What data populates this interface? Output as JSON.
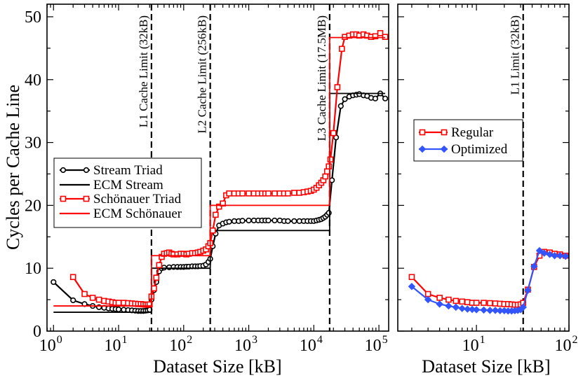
{
  "chart_data": [
    {
      "type": "line",
      "panel": "left",
      "xscale": "log",
      "xlim_exp": [
        -0.1,
        5.15
      ],
      "ylim": [
        0,
        52
      ],
      "xlabel": "Dataset Size [kB]",
      "ylabel": "Cycles per Cache Line",
      "xticks_exp": [
        0,
        1,
        2,
        3,
        4,
        5
      ],
      "yticks": [
        0,
        10,
        20,
        30,
        40,
        50
      ],
      "series": [
        {
          "name": "Stream Triad",
          "kind": "measured",
          "color": "#000000",
          "marker": "circle",
          "points": [
            [
              1,
              7.8
            ],
            [
              2,
              4.9
            ],
            [
              3,
              4.3
            ],
            [
              4,
              4.0
            ],
            [
              5,
              3.8
            ],
            [
              6,
              3.7
            ],
            [
              7,
              3.6
            ],
            [
              8,
              3.55
            ],
            [
              9,
              3.5
            ],
            [
              10,
              3.45
            ],
            [
              12,
              3.4
            ],
            [
              14,
              3.35
            ],
            [
              16,
              3.3
            ],
            [
              18,
              3.25
            ],
            [
              20,
              3.2
            ],
            [
              22,
              3.2
            ],
            [
              24,
              3.2
            ],
            [
              26,
              3.25
            ],
            [
              28,
              3.3
            ],
            [
              30,
              3.4
            ],
            [
              32,
              5.0
            ],
            [
              35,
              6.5
            ],
            [
              38,
              7.8
            ],
            [
              42,
              9.5
            ],
            [
              46,
              10.0
            ],
            [
              50,
              10.1
            ],
            [
              60,
              10.15
            ],
            [
              70,
              10.2
            ],
            [
              80,
              10.2
            ],
            [
              90,
              10.2
            ],
            [
              100,
              10.2
            ],
            [
              110,
              10.25
            ],
            [
              120,
              10.25
            ],
            [
              135,
              10.3
            ],
            [
              150,
              10.3
            ],
            [
              165,
              10.3
            ],
            [
              180,
              10.35
            ],
            [
              200,
              10.4
            ],
            [
              220,
              10.6
            ],
            [
              240,
              11.0
            ],
            [
              256,
              11.5
            ],
            [
              280,
              13.5
            ],
            [
              310,
              15.5
            ],
            [
              350,
              16.8
            ],
            [
              400,
              17.1
            ],
            [
              450,
              17.3
            ],
            [
              500,
              17.4
            ],
            [
              600,
              17.5
            ],
            [
              700,
              17.5
            ],
            [
              800,
              17.55
            ],
            [
              1000,
              17.6
            ],
            [
              1200,
              17.6
            ],
            [
              1400,
              17.6
            ],
            [
              1600,
              17.6
            ],
            [
              1800,
              17.6
            ],
            [
              2000,
              17.6
            ],
            [
              2500,
              17.6
            ],
            [
              3000,
              17.6
            ],
            [
              3500,
              17.5
            ],
            [
              4000,
              17.5
            ],
            [
              5000,
              17.5
            ],
            [
              6000,
              17.5
            ],
            [
              7000,
              17.5
            ],
            [
              8000,
              17.5
            ],
            [
              9000,
              17.5
            ],
            [
              10000,
              17.5
            ],
            [
              11000,
              17.6
            ],
            [
              12000,
              17.7
            ],
            [
              13000,
              17.8
            ],
            [
              14000,
              18.0
            ],
            [
              15000,
              18.2
            ],
            [
              16000,
              18.5
            ],
            [
              17000,
              18.8
            ],
            [
              19000,
              24.0
            ],
            [
              22000,
              30.8
            ],
            [
              26000,
              35.8
            ],
            [
              30000,
              36.9
            ],
            [
              35000,
              37.3
            ],
            [
              40000,
              37.5
            ],
            [
              45000,
              37.6
            ],
            [
              50000,
              37.7
            ],
            [
              58000,
              37.5
            ],
            [
              66000,
              37.4
            ],
            [
              76000,
              37.1
            ],
            [
              88000,
              37.0
            ],
            [
              105000,
              37.8
            ],
            [
              125000,
              37.0
            ]
          ]
        },
        {
          "name": "ECM Stream",
          "kind": "model",
          "color": "#000000",
          "points": [
            [
              1,
              3.0
            ],
            [
              32,
              3.0
            ],
            [
              32,
              10.0
            ],
            [
              256,
              10.0
            ],
            [
              256,
              16.0
            ],
            [
              17500,
              16.0
            ],
            [
              17500,
              37.8
            ],
            [
              125000,
              37.8
            ]
          ]
        },
        {
          "name": "Schönauer Triad",
          "kind": "measured",
          "color": "#ff0000",
          "marker": "square",
          "points": [
            [
              2,
              8.6
            ],
            [
              3,
              5.9
            ],
            [
              4,
              5.3
            ],
            [
              5,
              5.0
            ],
            [
              6,
              4.8
            ],
            [
              7,
              4.7
            ],
            [
              8,
              4.6
            ],
            [
              9,
              4.5
            ],
            [
              10,
              4.5
            ],
            [
              12,
              4.5
            ],
            [
              14,
              4.45
            ],
            [
              16,
              4.4
            ],
            [
              18,
              4.35
            ],
            [
              20,
              4.3
            ],
            [
              22,
              4.3
            ],
            [
              24,
              4.25
            ],
            [
              26,
              4.2
            ],
            [
              28,
              4.2
            ],
            [
              30,
              4.25
            ],
            [
              32,
              5.5
            ],
            [
              35,
              6.8
            ],
            [
              38,
              8.5
            ],
            [
              42,
              10.5
            ],
            [
              46,
              11.8
            ],
            [
              50,
              12.3
            ],
            [
              55,
              12.4
            ],
            [
              60,
              12.5
            ],
            [
              65,
              12.3
            ],
            [
              70,
              12.2
            ],
            [
              80,
              12.2
            ],
            [
              90,
              12.3
            ],
            [
              100,
              12.3
            ],
            [
              110,
              12.2
            ],
            [
              120,
              12.3
            ],
            [
              135,
              12.4
            ],
            [
              150,
              12.4
            ],
            [
              165,
              12.5
            ],
            [
              180,
              12.6
            ],
            [
              200,
              12.8
            ],
            [
              220,
              13.0
            ],
            [
              240,
              13.5
            ],
            [
              256,
              14.0
            ],
            [
              280,
              16.0
            ],
            [
              310,
              18.5
            ],
            [
              350,
              19.8
            ],
            [
              400,
              20.3
            ],
            [
              450,
              21.6
            ],
            [
              500,
              21.9
            ],
            [
              600,
              21.9
            ],
            [
              700,
              21.9
            ],
            [
              800,
              21.9
            ],
            [
              1000,
              21.9
            ],
            [
              1200,
              21.9
            ],
            [
              1400,
              21.9
            ],
            [
              1600,
              21.9
            ],
            [
              1800,
              21.9
            ],
            [
              2000,
              21.9
            ],
            [
              2500,
              21.9
            ],
            [
              3000,
              21.9
            ],
            [
              3500,
              21.9
            ],
            [
              4000,
              21.9
            ],
            [
              5000,
              22.0
            ],
            [
              6000,
              22.0
            ],
            [
              7000,
              22.1
            ],
            [
              8000,
              22.2
            ],
            [
              9000,
              22.3
            ],
            [
              10000,
              22.5
            ],
            [
              11000,
              22.8
            ],
            [
              12000,
              23.2
            ],
            [
              13000,
              23.6
            ],
            [
              14000,
              24.0
            ],
            [
              15000,
              24.6
            ],
            [
              16000,
              25.4
            ],
            [
              17000,
              26.2
            ],
            [
              18000,
              27.3
            ],
            [
              20000,
              31.5
            ],
            [
              23000,
              38.8
            ],
            [
              27000,
              44.9
            ],
            [
              30000,
              46.8
            ],
            [
              35000,
              47.0
            ],
            [
              40000,
              47.2
            ],
            [
              45000,
              47.2
            ],
            [
              50000,
              47.0
            ],
            [
              58000,
              47.2
            ],
            [
              66000,
              47.0
            ],
            [
              76000,
              46.8
            ],
            [
              88000,
              46.9
            ],
            [
              105000,
              47.4
            ],
            [
              125000,
              46.8
            ]
          ]
        },
        {
          "name": "ECM Schönauer",
          "kind": "model",
          "color": "#ff0000",
          "points": [
            [
              1,
              4.0
            ],
            [
              32,
              4.0
            ],
            [
              32,
              12.0
            ],
            [
              256,
              12.0
            ],
            [
              256,
              20.0
            ],
            [
              17500,
              20.0
            ],
            [
              17500,
              46.7
            ],
            [
              125000,
              46.7
            ]
          ]
        }
      ],
      "cache_limits": [
        {
          "x": 32,
          "label": "L1 Cache Limit (32kB)"
        },
        {
          "x": 256,
          "label": "L2 Cache Limit (256kB)"
        },
        {
          "x": 17500,
          "label": "L3 Cache Limit (17.5MB)"
        }
      ],
      "legend": {
        "position": "middle-left",
        "entries": [
          "Stream Triad",
          "ECM Stream",
          "Schönauer Triad",
          "ECM Schönauer"
        ]
      }
    },
    {
      "type": "line",
      "panel": "right",
      "xscale": "log",
      "xlim_exp": [
        0.15,
        2.0
      ],
      "ylim": [
        0,
        52
      ],
      "xlabel": "Dataset Size [kB]",
      "xticks_exp": [
        1,
        2
      ],
      "yticks": [
        0,
        10,
        20,
        30,
        40,
        50
      ],
      "series": [
        {
          "name": "Regular",
          "color": "#ff0000",
          "marker": "square",
          "points": [
            [
              2,
              8.6
            ],
            [
              3,
              5.9
            ],
            [
              4,
              5.3
            ],
            [
              5,
              5.0
            ],
            [
              6,
              4.8
            ],
            [
              7,
              4.7
            ],
            [
              8,
              4.6
            ],
            [
              9,
              4.5
            ],
            [
              10,
              4.5
            ],
            [
              12,
              4.5
            ],
            [
              14,
              4.45
            ],
            [
              16,
              4.4
            ],
            [
              18,
              4.35
            ],
            [
              20,
              4.3
            ],
            [
              22,
              4.3
            ],
            [
              24,
              4.25
            ],
            [
              26,
              4.2
            ],
            [
              28,
              4.2
            ],
            [
              30,
              4.25
            ],
            [
              32,
              4.5
            ],
            [
              36,
              6.6
            ],
            [
              42,
              10.2
            ],
            [
              48,
              12.0
            ],
            [
              54,
              12.6
            ],
            [
              62,
              12.5
            ],
            [
              70,
              12.3
            ],
            [
              80,
              12.2
            ],
            [
              92,
              12.0
            ]
          ]
        },
        {
          "name": "Optimized",
          "color": "#3355ff",
          "marker": "diamond",
          "points": [
            [
              2,
              7.1
            ],
            [
              3,
              5.0
            ],
            [
              4,
              4.3
            ],
            [
              5,
              4.0
            ],
            [
              6,
              3.8
            ],
            [
              7,
              3.6
            ],
            [
              8,
              3.5
            ],
            [
              9,
              3.45
            ],
            [
              10,
              3.4
            ],
            [
              12,
              3.35
            ],
            [
              14,
              3.3
            ],
            [
              16,
              3.3
            ],
            [
              18,
              3.25
            ],
            [
              20,
              3.25
            ],
            [
              22,
              3.2
            ],
            [
              24,
              3.2
            ],
            [
              26,
              3.25
            ],
            [
              28,
              3.3
            ],
            [
              30,
              3.4
            ],
            [
              32,
              3.8
            ],
            [
              36,
              6.5
            ],
            [
              42,
              10.3
            ],
            [
              48,
              12.8
            ],
            [
              54,
              12.4
            ],
            [
              62,
              12.2
            ],
            [
              70,
              12.0
            ],
            [
              80,
              12.0
            ],
            [
              92,
              11.9
            ]
          ]
        }
      ],
      "cache_limits": [
        {
          "x": 32,
          "label": "L1 Limit (32kB)"
        }
      ],
      "legend": {
        "position": "upper-left",
        "entries": [
          "Regular",
          "Optimized"
        ]
      }
    }
  ]
}
